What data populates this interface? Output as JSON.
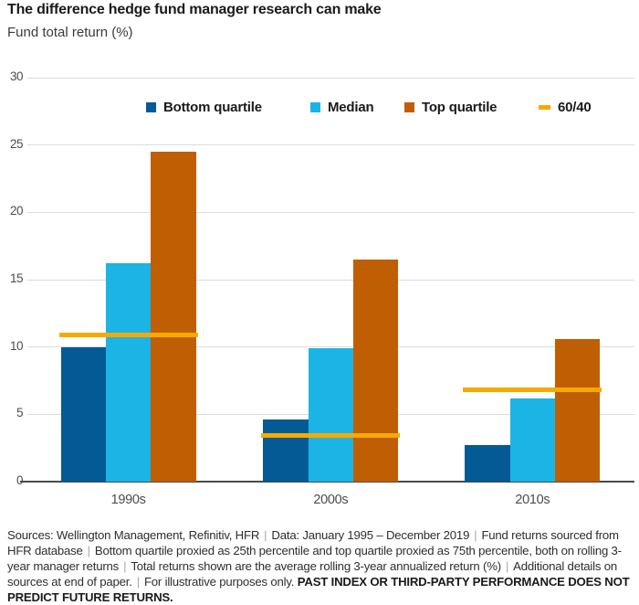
{
  "header": {
    "title": "The difference hedge fund manager research can make",
    "subtitle": "Fund total return (%)"
  },
  "chart_data": {
    "type": "bar",
    "title": "The difference hedge fund manager research can make",
    "ylabel": "Fund total return (%)",
    "xlabel": "",
    "ylim": [
      0,
      30
    ],
    "ytick_step": 5,
    "grid": true,
    "legend_position": "top",
    "categories": [
      "1990s",
      "2000s",
      "2010s"
    ],
    "series": [
      {
        "name": "Bottom quartile",
        "color": "#045a94",
        "values": [
          10.0,
          4.6,
          2.7
        ]
      },
      {
        "name": "Median",
        "color": "#1cb4e4",
        "values": [
          16.2,
          9.9,
          6.2
        ]
      },
      {
        "name": "Top quartile",
        "color": "#c05e03",
        "values": [
          24.5,
          16.5,
          10.6
        ]
      }
    ],
    "overlay_line": {
      "name": "60/40",
      "color": "#f8a900",
      "values": [
        10.9,
        3.4,
        6.8
      ]
    }
  },
  "footer": {
    "segments": [
      "Sources: Wellington Management, Refinitiv, HFR",
      "Data: January 1995 – December 2019",
      "Fund returns sourced from HFR database",
      "Bottom quartile proxied as 25th percentile and top quartile proxied as 75th percentile, both on rolling 3-year manager returns",
      "Total returns shown are the average rolling 3-year annualized return (%)",
      "Additional details on sources at end of paper.",
      "For illustrative purposes only."
    ],
    "bold_warning": "PAST INDEX OR THIRD-PARTY PERFORMANCE DOES NOT PREDICT FUTURE RETURNS."
  }
}
